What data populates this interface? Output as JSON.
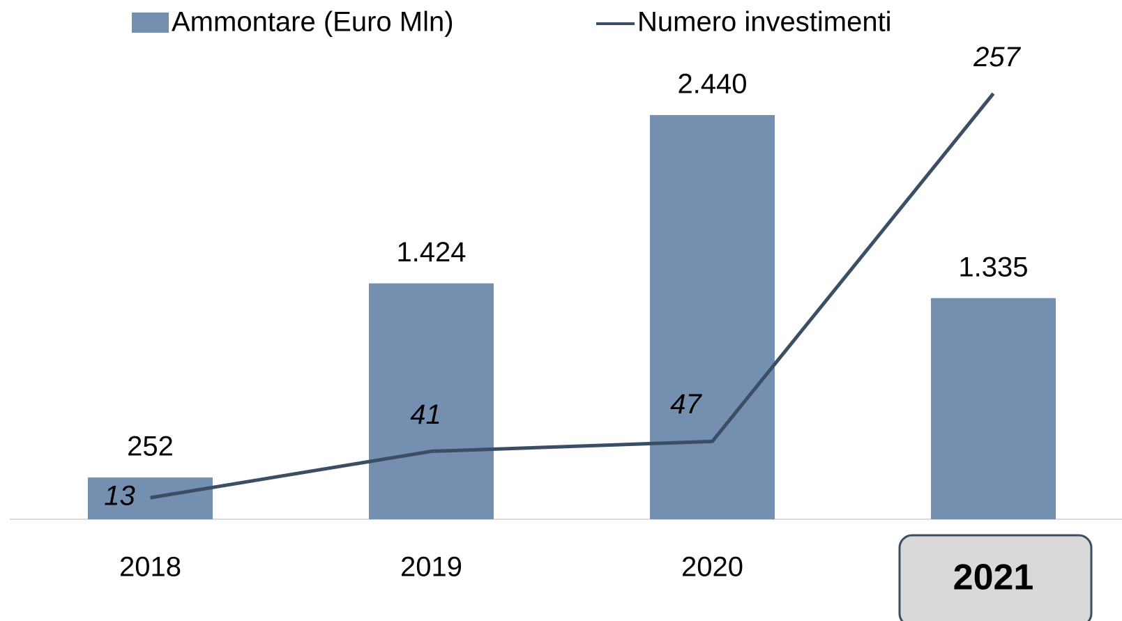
{
  "chart_data": {
    "type": "bar_line",
    "categories": [
      "2018",
      "2019",
      "2020",
      "2021"
    ],
    "series": [
      {
        "name": "Ammontare (Euro Mln)",
        "type": "bar",
        "color": "#748fb0",
        "values": [
          252,
          1424,
          2440,
          1335
        ],
        "value_labels": [
          "252",
          "1.424",
          "2.440",
          "1.335"
        ]
      },
      {
        "name": "Numero investimenti",
        "type": "line",
        "axis": "y2",
        "color": "#3c4e63",
        "values": [
          13,
          41,
          47,
          257
        ]
      }
    ],
    "ylim": [
      0,
      3000
    ],
    "y2lim": [
      0,
      300
    ],
    "grid": false,
    "legend": "top"
  }
}
